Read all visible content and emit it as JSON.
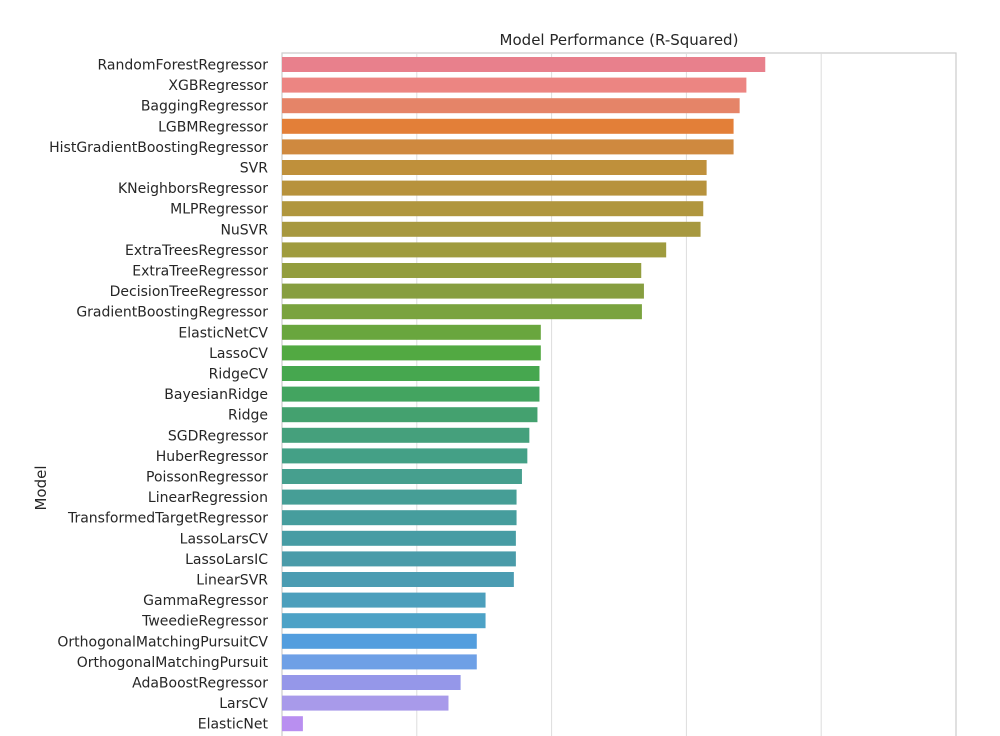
{
  "chart_data": {
    "type": "bar",
    "orientation": "horizontal",
    "title": "Model Performance (R-Squared)",
    "xlabel": "",
    "ylabel": "Model",
    "xlim": [
      0,
      1.0
    ],
    "grid": true,
    "categories": [
      "RandomForestRegressor",
      "XGBRegressor",
      "BaggingRegressor",
      "LGBMRegressor",
      "HistGradientBoostingRegressor",
      "SVR",
      "KNeighborsRegressor",
      "MLPRegressor",
      "NuSVR",
      "ExtraTreesRegressor",
      "ExtraTreeRegressor",
      "DecisionTreeRegressor",
      "GradientBoostingRegressor",
      "ElasticNetCV",
      "LassoCV",
      "RidgeCV",
      "BayesianRidge",
      "Ridge",
      "SGDRegressor",
      "HuberRegressor",
      "PoissonRegressor",
      "LinearRegression",
      "TransformedTargetRegressor",
      "LassoLarsCV",
      "LassoLarsIC",
      "LinearSVR",
      "GammaRegressor",
      "TweedieRegressor",
      "OrthogonalMatchingPursuitCV",
      "OrthogonalMatchingPursuit",
      "AdaBoostRegressor",
      "LarsCV",
      "ElasticNet"
    ],
    "values": [
      0.717,
      0.689,
      0.679,
      0.67,
      0.67,
      0.63,
      0.63,
      0.625,
      0.621,
      0.57,
      0.533,
      0.537,
      0.534,
      0.384,
      0.384,
      0.382,
      0.382,
      0.379,
      0.367,
      0.364,
      0.356,
      0.348,
      0.348,
      0.347,
      0.347,
      0.344,
      0.302,
      0.302,
      0.289,
      0.289,
      0.265,
      0.247,
      0.031
    ],
    "colors": [
      "#e8808c",
      "#ec8582",
      "#e58468",
      "#e37f38",
      "#cf893f",
      "#bf903b",
      "#b7923c",
      "#b0963e",
      "#a7983f",
      "#9f9b3e",
      "#939d3e",
      "#879e40",
      "#7aa33e",
      "#69a63e",
      "#52a942",
      "#46a74f",
      "#43a460",
      "#44a16f",
      "#45a07c",
      "#44a086",
      "#469f8e",
      "#469e96",
      "#469d9d",
      "#479ca4",
      "#4a9ba9",
      "#4b9cb2",
      "#4c9fbc",
      "#4da2c6",
      "#539ede",
      "#6ea0e6",
      "#9597e9",
      "#a89aea",
      "#b98ff0"
    ]
  }
}
